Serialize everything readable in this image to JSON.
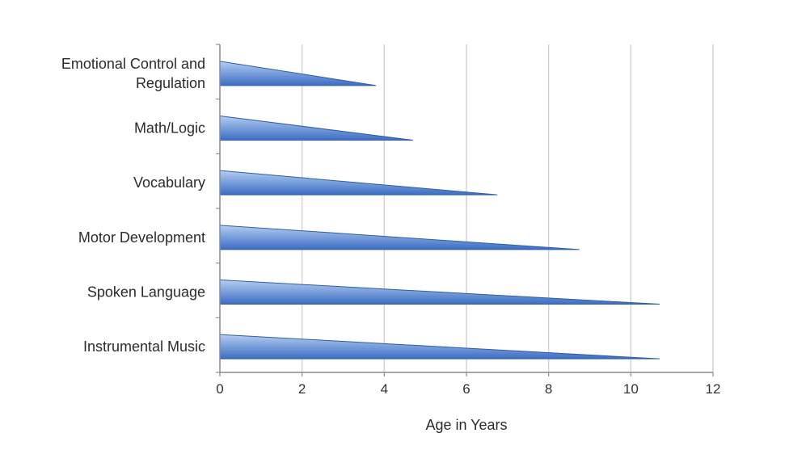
{
  "chart_data": {
    "type": "bar",
    "orientation": "horizontal",
    "categories": [
      "Emotional Control and Regulation",
      "Math/Logic",
      "Vocabulary",
      "Motor Development",
      "Spoken Language",
      "Instrumental Music"
    ],
    "values": [
      3.8,
      4.7,
      6.75,
      8.75,
      10.7,
      10.7
    ],
    "xlabel": "Age in Years",
    "ylabel": "",
    "xlim": [
      0,
      12
    ],
    "xticks": [
      "0",
      "2",
      "4",
      "6",
      "8",
      "10",
      "12"
    ],
    "grid": "vertical",
    "legend": "none",
    "colors": {
      "bar_light": "#b4cdf2",
      "bar_dark": "#3c6dc2",
      "bar_edge": "#2f5ea8",
      "grid": "#d4d4d4",
      "axis": "#8c8c8c"
    }
  }
}
